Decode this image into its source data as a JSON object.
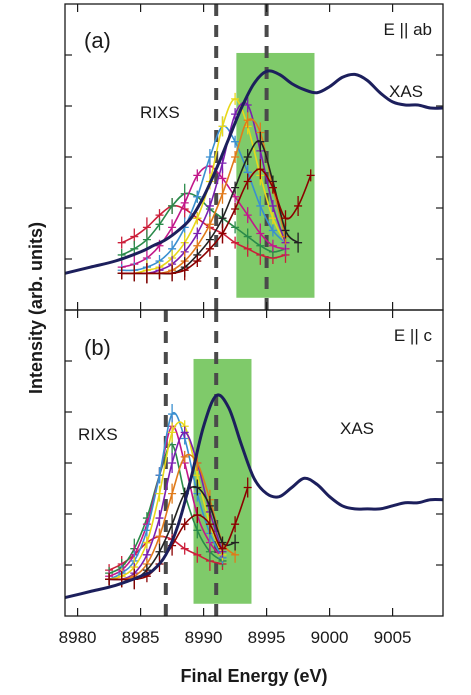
{
  "chart_data": {
    "type": "line",
    "xlabel": "Final Energy (eV)",
    "ylabel": "Intensity (arb. units)",
    "xlim": [
      8979,
      9009
    ],
    "x_ticks": [
      8980,
      8985,
      8990,
      8995,
      9000,
      9005
    ],
    "x_tick_labels": [
      "8980",
      "8985",
      "8990",
      "8995",
      "9000",
      "9005"
    ],
    "grid": false,
    "panels": [
      {
        "label": "(a)",
        "polarization": "E || ab",
        "xas_label": "XAS",
        "rixs_label": "RIXS",
        "colors": {
          "xas": "#1c1f5c",
          "band": "#7fca6a",
          "dashed": "#4a4a4a",
          "rixs": [
            "#cc1f3a",
            "#2a8a4a",
            "#c2188a",
            "#3a8fd0",
            "#e8d81a",
            "#7a1fb0",
            "#e07a1a",
            "#222222",
            "#8b0000"
          ]
        },
        "dashed_lines_x": [
          8991,
          8995
        ],
        "band": [
          8992.6,
          8998.8
        ],
        "xas": {
          "x": [
            8979,
            8981,
            8983,
            8985,
            8986,
            8987,
            8988,
            8989,
            8990,
            8991,
            8992,
            8993,
            8994,
            8995,
            8996,
            8997,
            8998,
            8999,
            9000,
            9001,
            9002,
            9003,
            9004,
            9005,
            9006,
            9007,
            9008,
            9009
          ],
          "y": [
            0.12,
            0.14,
            0.16,
            0.19,
            0.21,
            0.23,
            0.26,
            0.3,
            0.37,
            0.46,
            0.56,
            0.66,
            0.74,
            0.78,
            0.77,
            0.74,
            0.72,
            0.71,
            0.73,
            0.76,
            0.77,
            0.75,
            0.71,
            0.68,
            0.67,
            0.67,
            0.66,
            0.66
          ]
        },
        "rixs": [
          {
            "peak": 8986.9,
            "amp": 0.1,
            "base_x": [
              8983.5,
              8984.5,
              8985.5,
              8986.5,
              8987.5,
              8988.5,
              8989.5,
              8990.5,
              8991.5,
              8992.5,
              8993.5,
              8994.5,
              8995.5,
              8996.5
            ],
            "y": [
              0.22,
              0.24,
              0.27,
              0.31,
              0.34,
              0.33,
              0.3,
              0.27,
              0.25,
              0.22,
              0.2,
              0.18,
              0.17,
              0.18
            ]
          },
          {
            "peak": 8987.8,
            "amp": 0.14,
            "base_x": [
              8983.5,
              8984.5,
              8985.5,
              8986.5,
              8987.5,
              8988.5,
              8989.5,
              8990.5,
              8991.5,
              8992.5,
              8993.5,
              8994.5,
              8995.5,
              8996.5
            ],
            "y": [
              0.18,
              0.2,
              0.23,
              0.28,
              0.34,
              0.38,
              0.37,
              0.33,
              0.3,
              0.27,
              0.24,
              0.21,
              0.19,
              0.2
            ]
          },
          {
            "peak": 8988.7,
            "amp": 0.18,
            "base_x": [
              8983.5,
              8984.5,
              8985.5,
              8986.5,
              8987.5,
              8988.5,
              8989.5,
              8990.5,
              8991.5,
              8992.5,
              8993.5,
              8994.5,
              8995.5,
              8996.5
            ],
            "y": [
              0.14,
              0.15,
              0.17,
              0.21,
              0.27,
              0.35,
              0.44,
              0.47,
              0.43,
              0.37,
              0.31,
              0.25,
              0.21,
              0.2
            ]
          },
          {
            "peak": 8989.6,
            "amp": 0.22,
            "base_x": [
              8983.5,
              8984.5,
              8985.5,
              8986.5,
              8987.5,
              8988.5,
              8989.5,
              8990.5,
              8991.5,
              8992.5,
              8993.5,
              8994.5,
              8995.5,
              8996.5
            ],
            "y": [
              0.13,
              0.13,
              0.14,
              0.16,
              0.2,
              0.27,
              0.37,
              0.5,
              0.6,
              0.55,
              0.45,
              0.34,
              0.26,
              0.22
            ]
          },
          {
            "peak": 8990.4,
            "amp": 0.24,
            "base_x": [
              8983.5,
              8984.5,
              8985.5,
              8986.5,
              8987.5,
              8988.5,
              8989.5,
              8990.5,
              8991.5,
              8992.5,
              8993.5,
              8994.5,
              8995.5,
              8996.5
            ],
            "y": [
              0.12,
              0.12,
              0.13,
              0.14,
              0.17,
              0.22,
              0.3,
              0.42,
              0.6,
              0.69,
              0.6,
              0.44,
              0.3,
              0.22
            ]
          },
          {
            "peak": 8991.2,
            "amp": 0.24,
            "base_x": [
              8983.5,
              8984.5,
              8985.5,
              8986.5,
              8987.5,
              8988.5,
              8989.5,
              8990.5,
              8991.5,
              8992.5,
              8993.5,
              8994.5,
              8995.5,
              8996.5
            ],
            "y": [
              0.12,
              0.12,
              0.12,
              0.13,
              0.15,
              0.19,
              0.25,
              0.34,
              0.48,
              0.64,
              0.67,
              0.52,
              0.34,
              0.22
            ]
          },
          {
            "peak": 8992.0,
            "amp": 0.22,
            "base_x": [
              8983.5,
              8984.5,
              8985.5,
              8986.5,
              8987.5,
              8988.5,
              8989.5,
              8990.5,
              8991.5,
              8992.5,
              8993.5,
              8994.5,
              8995.5,
              8996.5
            ],
            "y": [
              0.12,
              0.12,
              0.12,
              0.12,
              0.13,
              0.16,
              0.21,
              0.28,
              0.38,
              0.5,
              0.62,
              0.58,
              0.4,
              0.24
            ]
          },
          {
            "peak": 8992.8,
            "amp": 0.18,
            "base_x": [
              8983.5,
              8984.5,
              8985.5,
              8986.5,
              8987.5,
              8988.5,
              8989.5,
              8990.5,
              8991.5,
              8992.5,
              8993.5,
              8994.5,
              8995.5,
              8996.5,
              8997.5
            ],
            "y": [
              0.12,
              0.12,
              0.12,
              0.12,
              0.12,
              0.14,
              0.18,
              0.23,
              0.3,
              0.4,
              0.5,
              0.55,
              0.42,
              0.26,
              0.22
            ]
          },
          {
            "peak": 8993.6,
            "amp": 0.16,
            "base_x": [
              8983.5,
              8984.5,
              8985.5,
              8986.5,
              8987.5,
              8988.5,
              8989.5,
              8990.5,
              8991.5,
              8992.5,
              8993.5,
              8994.5,
              8995.5,
              8996.5,
              8997.5,
              8998.5
            ],
            "y": [
              0.12,
              0.12,
              0.12,
              0.12,
              0.12,
              0.13,
              0.16,
              0.2,
              0.25,
              0.33,
              0.42,
              0.46,
              0.4,
              0.3,
              0.34,
              0.44
            ]
          }
        ]
      },
      {
        "label": "(b)",
        "polarization": "E || c",
        "xas_label": "XAS",
        "rixs_label": "RIXS",
        "colors": {
          "xas": "#1c1f5c",
          "band": "#7fca6a",
          "dashed": "#4a4a4a",
          "rixs": [
            "#cc1f3a",
            "#2a8a4a",
            "#c2188a",
            "#3a8fd0",
            "#e8d81a",
            "#7a1fb0",
            "#e07a1a",
            "#222222",
            "#8b0000"
          ]
        },
        "dashed_lines_x": [
          8987,
          8991
        ],
        "band": [
          8989.2,
          8993.8
        ],
        "xas": {
          "x": [
            8979,
            8981,
            8983,
            8985,
            8986,
            8987,
            8988,
            8989,
            8990,
            8991,
            8992,
            8993,
            8994,
            8995,
            8996,
            8997,
            8998,
            8999,
            9000,
            9001,
            9002,
            9003,
            9004,
            9005,
            9006,
            9007,
            9008,
            9009
          ],
          "y": [
            0.06,
            0.08,
            0.1,
            0.13,
            0.15,
            0.2,
            0.3,
            0.45,
            0.62,
            0.72,
            0.68,
            0.56,
            0.45,
            0.4,
            0.39,
            0.42,
            0.45,
            0.43,
            0.39,
            0.36,
            0.35,
            0.35,
            0.35,
            0.36,
            0.37,
            0.37,
            0.38,
            0.38
          ]
        },
        "rixs": [
          {
            "base_x": [
              8982.5,
              8983.5,
              8984.5,
              8985.5,
              8986.5,
              8987.5,
              8988.5,
              8989.5,
              8990.5,
              8991.5
            ],
            "y": [
              0.15,
              0.17,
              0.2,
              0.24,
              0.26,
              0.25,
              0.22,
              0.2,
              0.18,
              0.17
            ]
          },
          {
            "base_x": [
              8982.5,
              8983.5,
              8984.5,
              8985.5,
              8986.5,
              8987.5,
              8988.5,
              8989.5,
              8990.5,
              8991.5
            ],
            "y": [
              0.14,
              0.16,
              0.22,
              0.32,
              0.46,
              0.56,
              0.4,
              0.28,
              0.21,
              0.18
            ]
          },
          {
            "base_x": [
              8982.5,
              8983.5,
              8984.5,
              8985.5,
              8986.5,
              8987.5,
              8988.5,
              8989.5,
              8990.5,
              8991.5
            ],
            "y": [
              0.13,
              0.15,
              0.2,
              0.3,
              0.46,
              0.62,
              0.5,
              0.33,
              0.24,
              0.19
            ]
          },
          {
            "base_x": [
              8982.5,
              8983.5,
              8984.5,
              8985.5,
              8986.5,
              8987.5,
              8988.5,
              8989.5,
              8990.5,
              8991.5
            ],
            "y": [
              0.12,
              0.14,
              0.18,
              0.28,
              0.46,
              0.66,
              0.58,
              0.4,
              0.27,
              0.19
            ]
          },
          {
            "base_x": [
              8982.5,
              8983.5,
              8984.5,
              8985.5,
              8986.5,
              8987.5,
              8988.5,
              8989.5,
              8990.5,
              8991.5
            ],
            "y": [
              0.12,
              0.13,
              0.16,
              0.24,
              0.4,
              0.6,
              0.62,
              0.46,
              0.3,
              0.2
            ]
          },
          {
            "base_x": [
              8982.5,
              8983.5,
              8984.5,
              8985.5,
              8986.5,
              8987.5,
              8988.5,
              8989.5,
              8990.5,
              8991.5
            ],
            "y": [
              0.12,
              0.12,
              0.14,
              0.2,
              0.32,
              0.5,
              0.6,
              0.5,
              0.34,
              0.21
            ]
          },
          {
            "base_x": [
              8982.5,
              8983.5,
              8984.5,
              8985.5,
              8986.5,
              8987.5,
              8988.5,
              8989.5,
              8990.5,
              8991.5,
              8992.5
            ],
            "y": [
              0.12,
              0.12,
              0.13,
              0.17,
              0.26,
              0.4,
              0.52,
              0.5,
              0.38,
              0.24,
              0.2
            ]
          },
          {
            "base_x": [
              8982.5,
              8983.5,
              8984.5,
              8985.5,
              8986.5,
              8987.5,
              8988.5,
              8989.5,
              8990.5,
              8991.5,
              8992.5
            ],
            "y": [
              0.12,
              0.12,
              0.12,
              0.15,
              0.21,
              0.3,
              0.4,
              0.42,
              0.36,
              0.24,
              0.24
            ]
          },
          {
            "base_x": [
              8982.5,
              8983.5,
              8984.5,
              8985.5,
              8986.5,
              8987.5,
              8988.5,
              8989.5,
              8990.5,
              8991.5,
              8992.5,
              8993.5
            ],
            "y": [
              0.12,
              0.12,
              0.12,
              0.13,
              0.17,
              0.23,
              0.3,
              0.33,
              0.3,
              0.22,
              0.3,
              0.42
            ]
          }
        ]
      }
    ]
  }
}
